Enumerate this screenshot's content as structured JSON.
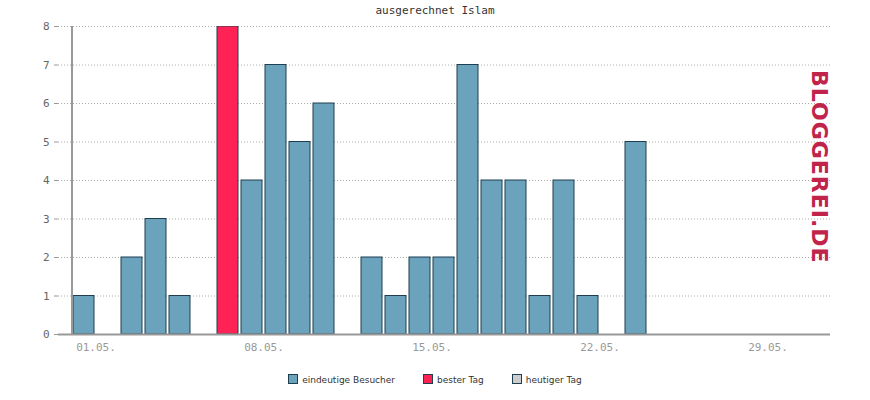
{
  "chart_data": {
    "type": "bar",
    "title": "ausgerechnet Islam",
    "categories": [
      "01.05.",
      null,
      null,
      null,
      null,
      null,
      null,
      "08.05.",
      null,
      null,
      null,
      null,
      null,
      null,
      "15.05.",
      null,
      null,
      null,
      null,
      null,
      null,
      "22.05.",
      null,
      null,
      null,
      null,
      null,
      null,
      "29.05.",
      null,
      null
    ],
    "series": [
      {
        "name": "eindeutige Besucher",
        "color": "#6aa3bb",
        "values": [
          1,
          0,
          2,
          3,
          1,
          0,
          null,
          4,
          7,
          5,
          6,
          0,
          2,
          1,
          2,
          2,
          7,
          4,
          4,
          1,
          4,
          1,
          0,
          5,
          0,
          0,
          0,
          0,
          0,
          0,
          0
        ]
      },
      {
        "name": "bester Tag",
        "color": "#ff2255",
        "values": [
          null,
          null,
          null,
          null,
          null,
          null,
          8,
          null,
          null,
          null,
          null,
          null,
          null,
          null,
          null,
          null,
          null,
          null,
          null,
          null,
          null,
          null,
          null,
          null,
          null,
          null,
          null,
          null,
          null,
          null,
          null
        ]
      },
      {
        "name": "heutiger Tag",
        "color": "#cccccc",
        "values": [
          null,
          null,
          null,
          null,
          null,
          null,
          null,
          null,
          null,
          null,
          null,
          null,
          null,
          null,
          null,
          null,
          null,
          null,
          null,
          null,
          null,
          null,
          null,
          null,
          null,
          null,
          null,
          null,
          null,
          null,
          null
        ]
      }
    ],
    "ylim": [
      0,
      8
    ],
    "yticks": [
      0,
      1,
      2,
      3,
      4,
      5,
      6,
      7,
      8
    ],
    "grid": true,
    "legend": "bottom",
    "annotations": [
      "BLOGGEREI.DE"
    ]
  }
}
